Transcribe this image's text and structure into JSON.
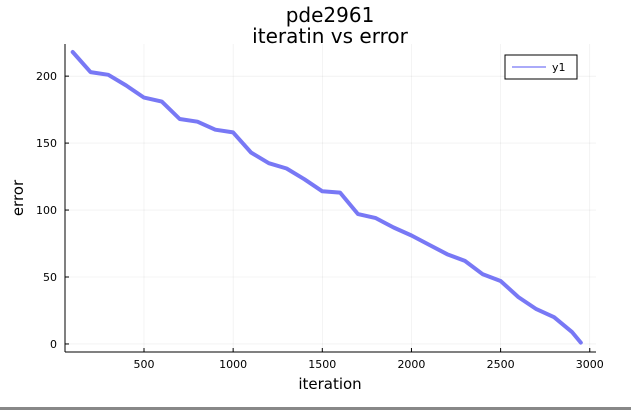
{
  "chart_data": {
    "type": "line",
    "title": "pde2961",
    "subtitle": "iteratin vs error",
    "xlabel": "iteration",
    "ylabel": "error",
    "xlim": [
      57,
      3035
    ],
    "ylim": [
      -6,
      224
    ],
    "xticks": [
      500,
      1000,
      1500,
      2000,
      2500,
      3000
    ],
    "xtick_labels": [
      "500",
      "1000",
      "1500",
      "2000",
      "2500",
      "3000"
    ],
    "yticks": [
      0,
      50,
      100,
      150,
      200
    ],
    "ytick_labels": [
      "0",
      "50",
      "100",
      "150",
      "200"
    ],
    "grid": true,
    "legend": {
      "placement": "top-right",
      "entries": [
        "y1"
      ]
    },
    "series": [
      {
        "name": "y1",
        "color": "#7878f5",
        "x": [
          100,
          200,
          300,
          400,
          500,
          600,
          700,
          800,
          900,
          1000,
          1100,
          1200,
          1300,
          1400,
          1500,
          1600,
          1700,
          1800,
          1900,
          2000,
          2100,
          2200,
          2300,
          2400,
          2500,
          2600,
          2700,
          2800,
          2900,
          2950
        ],
        "y": [
          218,
          203,
          201,
          193,
          184,
          181,
          168,
          166,
          160,
          158,
          143,
          135,
          131,
          123,
          114,
          113,
          97,
          94,
          87,
          81,
          74,
          67,
          62,
          52,
          47,
          35,
          26,
          20,
          9,
          1
        ]
      }
    ]
  }
}
